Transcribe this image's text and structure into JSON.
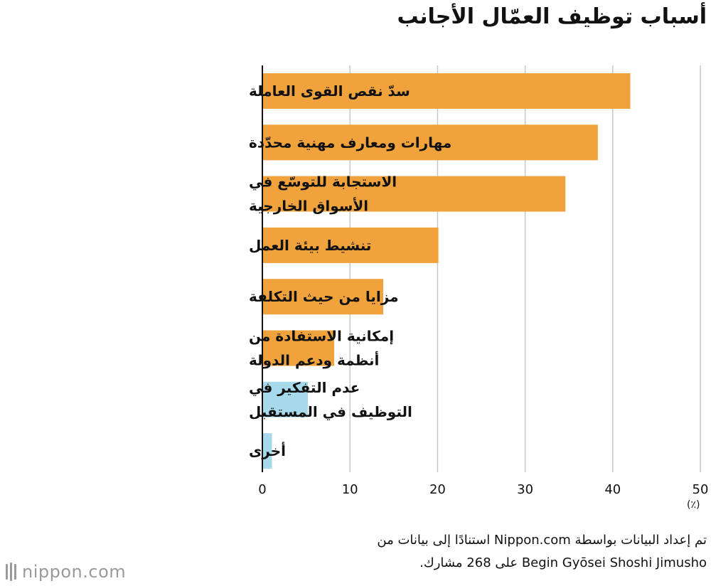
{
  "title": "أسباب توظيف العمّال الأجانب",
  "unit": "(٪)",
  "footer": {
    "line1": "تم إعداد البيانات بواسطة Nippon.com استنادًا إلى بيانات من",
    "line2": "Begin Gyōsei Shoshi Jimusho على 268 مشارك."
  },
  "brand": {
    "logo_text": "nippon.com",
    "logo_color": "#9a9a9a"
  },
  "chart_data": {
    "type": "bar",
    "orientation": "horizontal",
    "title": "أسباب توظيف العمّال الأجانب",
    "xlabel": "(٪)",
    "xlim": [
      0,
      50
    ],
    "xticks": [
      0,
      10,
      20,
      30,
      40,
      50
    ],
    "grid": true,
    "categories": [
      [
        "سدّ نقص القوى العاملة"
      ],
      [
        "مهارات ومعارف مهنية محدّدة"
      ],
      [
        "الاستجابة للتوسّع في",
        "الأسواق الخارجية"
      ],
      [
        "تنشيط بيئة العمل"
      ],
      [
        "مزايا من حيث التكلفة"
      ],
      [
        "إمكانية الاستفادة من",
        "أنظمة ودعم الدولة"
      ],
      [
        "عدم التفكير في",
        "التوظيف في المستقبل"
      ],
      [
        "أخرى"
      ]
    ],
    "values": [
      42,
      38.3,
      34.6,
      20.1,
      13.8,
      8.2,
      5.2,
      1.1
    ],
    "colors": [
      "#f0a23c",
      "#f0a23c",
      "#f0a23c",
      "#f0a23c",
      "#f0a23c",
      "#f0a23c",
      "#a6d9ea",
      "#a6d9ea"
    ]
  }
}
